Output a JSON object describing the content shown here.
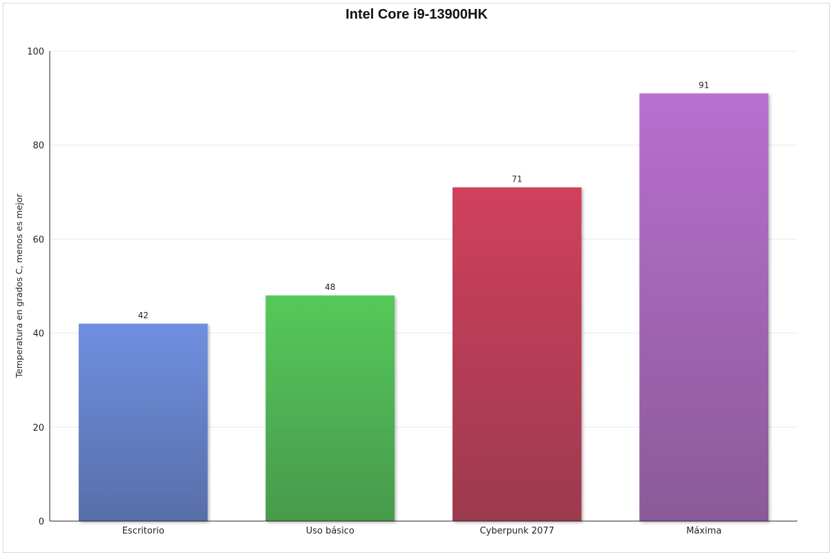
{
  "chart_data": {
    "type": "bar",
    "title": "Intel Core i9-13900HK",
    "xlabel": "",
    "ylabel": "Temperatura en grados C, menos es mejor",
    "ylim": [
      0,
      100
    ],
    "yticks": [
      0,
      20,
      40,
      60,
      80,
      100
    ],
    "categories": [
      "Escritorio",
      "Uso básico",
      "Cyberpunk 2077",
      "Máxima"
    ],
    "values": [
      42,
      48,
      71,
      91
    ],
    "colors": [
      [
        "#6f8fe0",
        "#586ea8"
      ],
      [
        "#55c85a",
        "#489a4c"
      ],
      [
        "#d0405c",
        "#9c3a4e"
      ],
      [
        "#b96fcf",
        "#8a5a98"
      ]
    ],
    "grid": true,
    "legend": "none"
  }
}
